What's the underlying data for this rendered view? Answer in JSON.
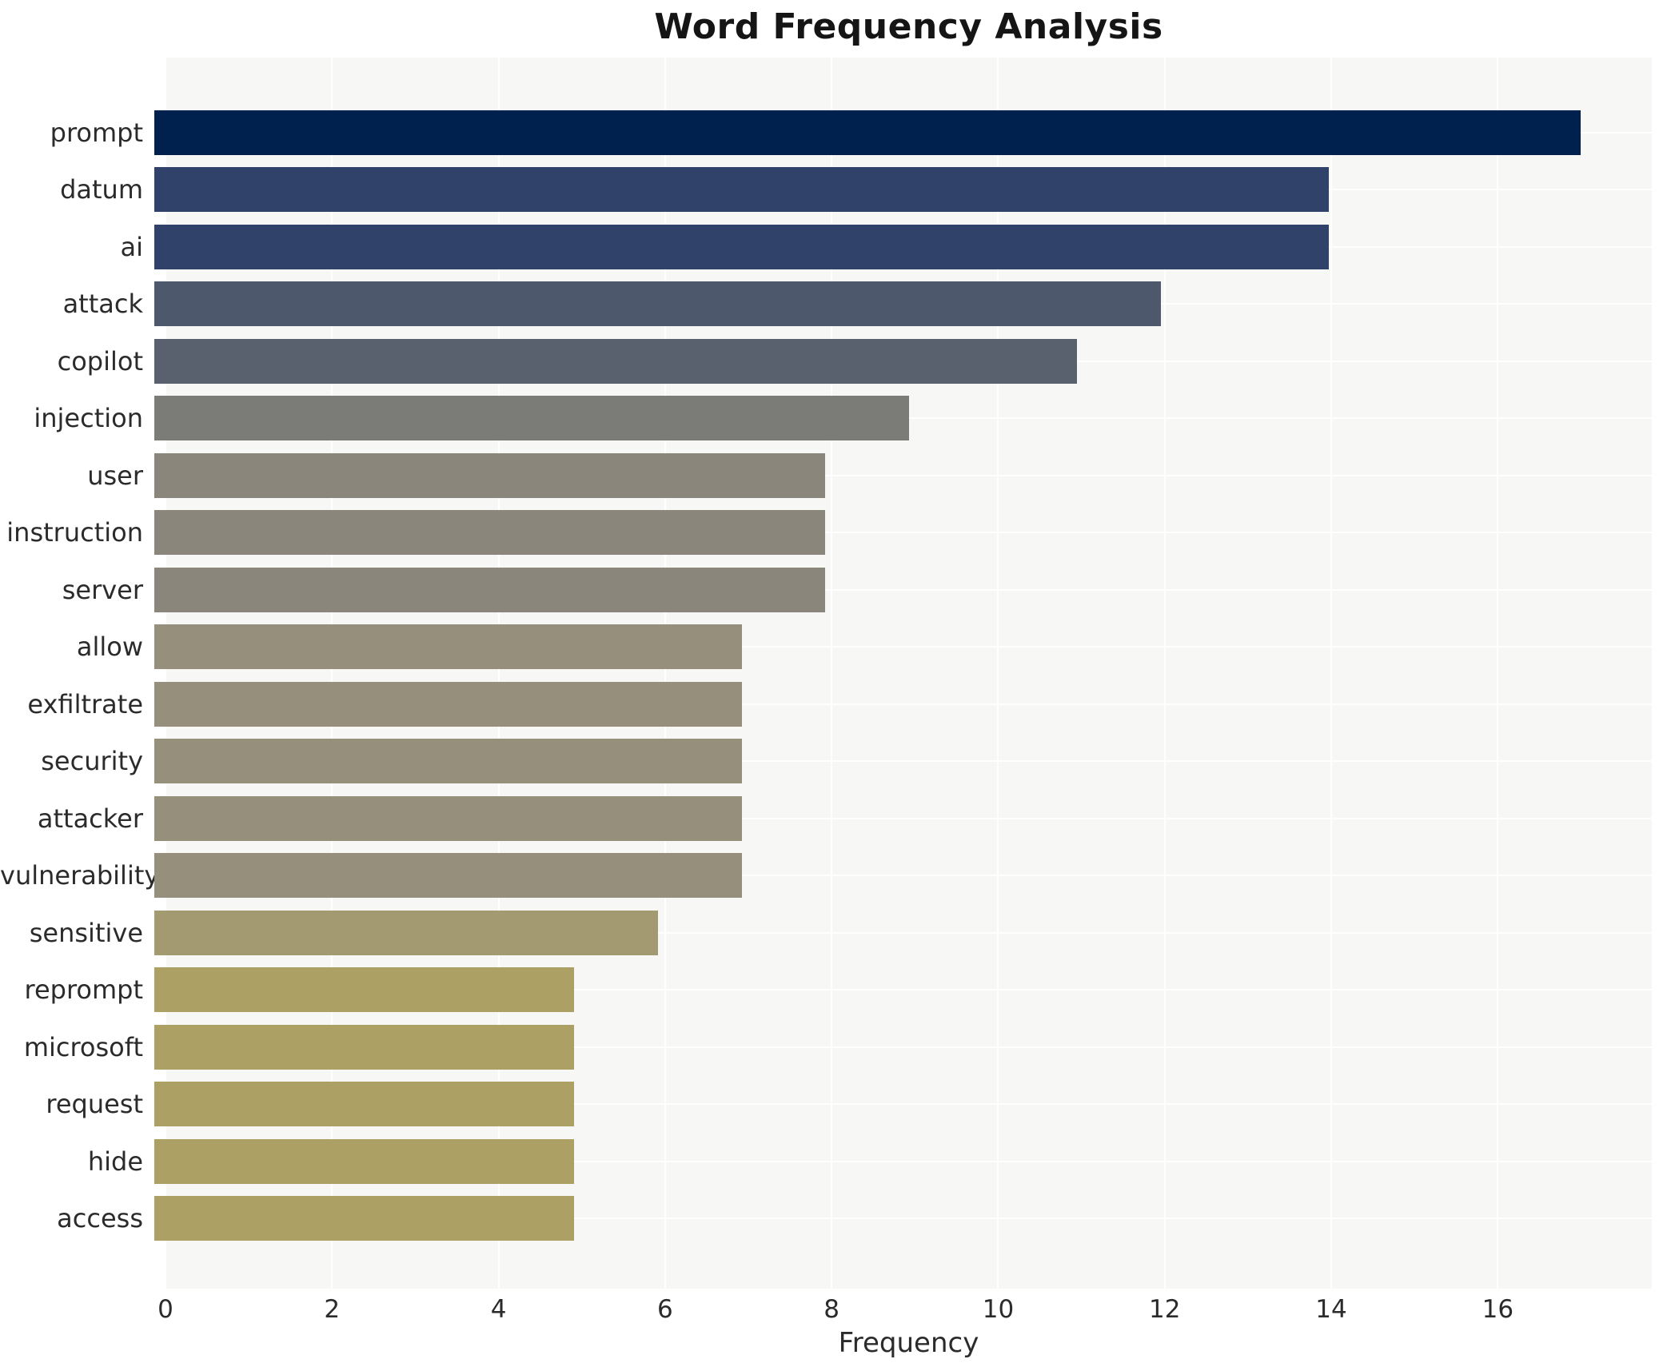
{
  "title": "Word Frequency Analysis",
  "chart_data": {
    "type": "bar",
    "orientation": "horizontal",
    "title": "Word Frequency Analysis",
    "xlabel": "Frequency",
    "ylabel": "",
    "categories": [
      "prompt",
      "datum",
      "ai",
      "attack",
      "copilot",
      "injection",
      "user",
      "instruction",
      "server",
      "allow",
      "exfiltrate",
      "security",
      "attacker",
      "vulnerability",
      "sensitive",
      "reprompt",
      "microsoft",
      "request",
      "hide",
      "access"
    ],
    "values": [
      17,
      14,
      14,
      12,
      11,
      9,
      8,
      8,
      8,
      7,
      7,
      7,
      7,
      7,
      6,
      5,
      5,
      5,
      5,
      5
    ],
    "bar_colors": [
      "#00204d",
      "#304269",
      "#304269",
      "#4d586c",
      "#5a616e",
      "#7b7b78",
      "#8a867b",
      "#8a867b",
      "#8a867b",
      "#968f7c",
      "#968f7c",
      "#968f7c",
      "#968f7c",
      "#968f7c",
      "#a49a71",
      "#aca064",
      "#aca064",
      "#aca064",
      "#aca064",
      "#aca064"
    ],
    "xticks": [
      0,
      2,
      4,
      6,
      8,
      10,
      12,
      14,
      16
    ],
    "xlim": [
      0,
      17.85
    ],
    "grid": true,
    "legend": "none",
    "plot_background": "#f7f7f6",
    "grid_color": "#ffffff",
    "text_color": "#2b2b2b"
  }
}
